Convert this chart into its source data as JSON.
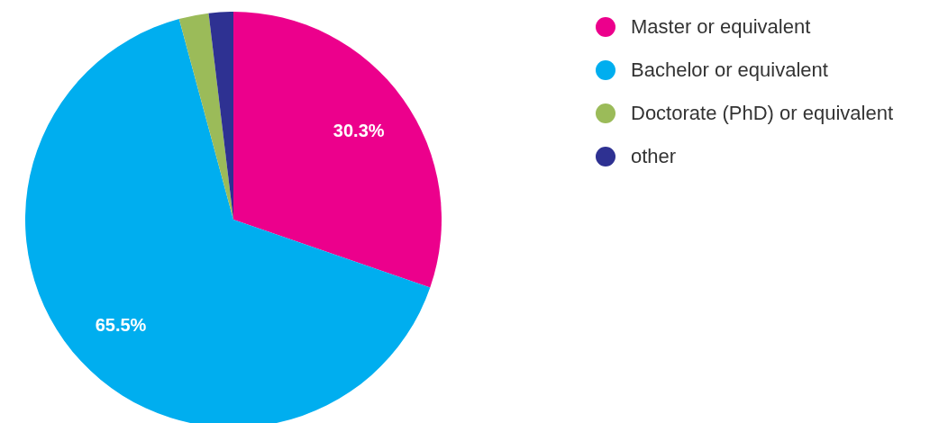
{
  "chart_data": {
    "type": "pie",
    "categories": [
      "Master or equivalent",
      "Bachelor or equivalent",
      "Doctorate (PhD) or equivalent",
      "other"
    ],
    "values": [
      30.3,
      65.5,
      2.3,
      1.9
    ],
    "colors": [
      "#ec008c",
      "#00aeef",
      "#9bbb59",
      "#2e3192"
    ],
    "value_labels": [
      "30.3%",
      "65.5%",
      null,
      null
    ],
    "legend": "top right"
  }
}
